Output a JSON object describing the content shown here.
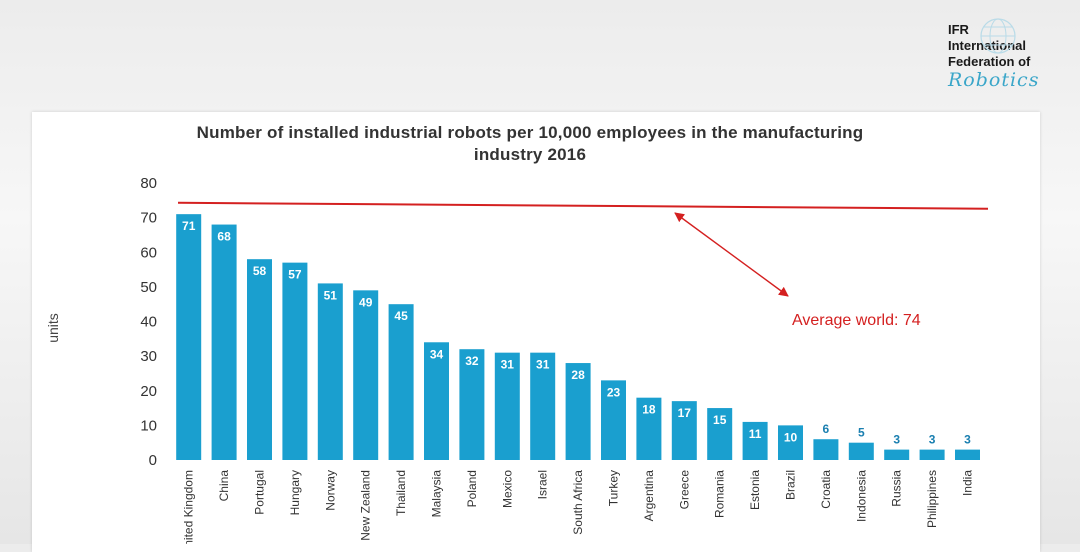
{
  "logo": {
    "line1": "IFR",
    "line2": "International",
    "line3": "Federation of",
    "line4": "Robotics"
  },
  "chart_data": {
    "type": "bar",
    "title_line1": "Number of installed industrial robots per 10,000 employees in the manufacturing",
    "title_line2": "industry 2016",
    "ylabel": "units",
    "xlabel": "",
    "ylim": [
      0,
      80
    ],
    "yticks": [
      0,
      10,
      20,
      30,
      40,
      50,
      60,
      70,
      80
    ],
    "categories": [
      "United Kingdom",
      "China",
      "Portugal",
      "Hungary",
      "Norway",
      "New Zealand",
      "Thailand",
      "Malaysia",
      "Poland",
      "Mexico",
      "Israel",
      "South Africa",
      "Turkey",
      "Argentina",
      "Greece",
      "Romania",
      "Estonia",
      "Brazil",
      "Croatia",
      "Indonesia",
      "Russia",
      "Philippines",
      "India"
    ],
    "values": [
      71,
      68,
      58,
      57,
      51,
      49,
      45,
      34,
      32,
      31,
      31,
      28,
      23,
      18,
      17,
      15,
      11,
      10,
      6,
      5,
      3,
      3,
      3
    ],
    "average": {
      "label": "Average world: 74",
      "value": 74
    },
    "colors": {
      "bar": "#1a9fcf",
      "average_line": "#d42020",
      "value_label_inside": "#ffffff",
      "value_label_outside": "#1a7fb0"
    }
  }
}
